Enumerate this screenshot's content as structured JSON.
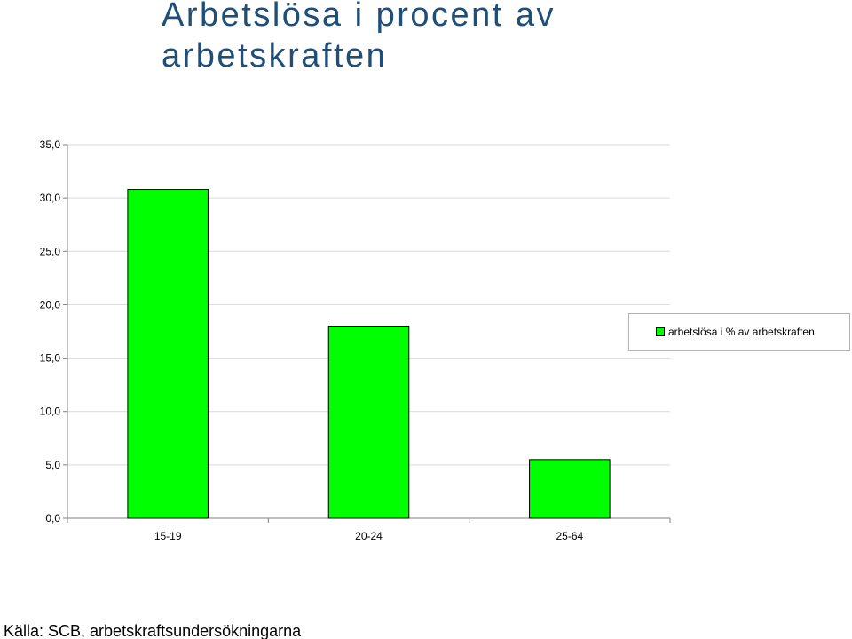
{
  "page": {
    "title": "Arbetslösa i procent av arbetskraften",
    "source": "Källa: SCB, arbetskraftsundersökningarna"
  },
  "colors": {
    "title": "#1f4e79",
    "bar": "#00ff00",
    "bar_border": "#000000",
    "grid": "#d9d9d9",
    "axis": "#808080"
  },
  "chart_data": {
    "type": "bar",
    "title": "",
    "xlabel": "",
    "ylabel": "",
    "categories": [
      "15-19",
      "20-24",
      "25-64"
    ],
    "series": [
      {
        "name": "arbetslösa i % av arbetskraften",
        "values": [
          30.8,
          18.0,
          5.5
        ]
      }
    ],
    "ylim": [
      0,
      35
    ],
    "yticks": [
      "0,0",
      "5,0",
      "10,0",
      "15,0",
      "20,0",
      "25,0",
      "30,0",
      "35,0"
    ],
    "grid": true,
    "legend_position": "right"
  }
}
